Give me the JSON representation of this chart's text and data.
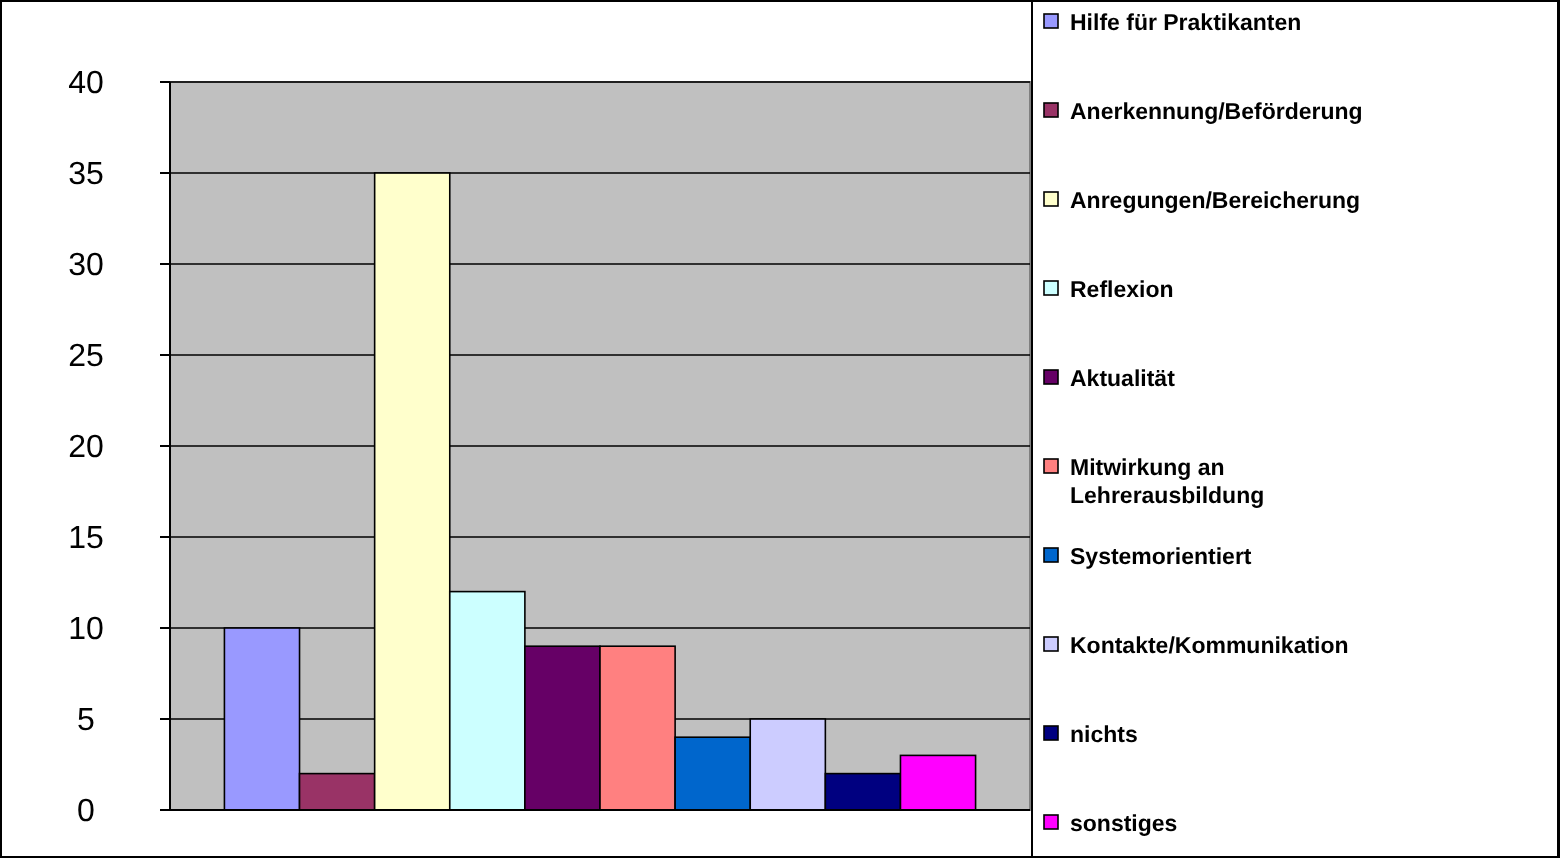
{
  "chart_data": {
    "type": "bar",
    "categories": [
      null
    ],
    "series": [
      {
        "name": "Hilfe für Praktikanten",
        "color": "#9999ff",
        "values": [
          10
        ]
      },
      {
        "name": "Anerkennung/Beförderung",
        "color": "#993366",
        "values": [
          2
        ]
      },
      {
        "name": "Anregungen/Bereicherung",
        "color": "#ffffcc",
        "values": [
          35
        ]
      },
      {
        "name": "Reflexion",
        "color": "#ccffff",
        "values": [
          12
        ]
      },
      {
        "name": "Aktualität",
        "color": "#660066",
        "values": [
          9
        ]
      },
      {
        "name": "Mitwirkung an Lehrerausbildung",
        "color": "#ff8080",
        "values": [
          9
        ]
      },
      {
        "name": "Systemorientiert",
        "color": "#0066cc",
        "values": [
          4
        ]
      },
      {
        "name": "Kontakte/Kommunikation",
        "color": "#ccccff",
        "values": [
          5
        ]
      },
      {
        "name": "nichts",
        "color": "#000080",
        "values": [
          2
        ]
      },
      {
        "name": "sonstiges",
        "color": "#ff00ff",
        "values": [
          3
        ]
      }
    ],
    "ylim": [
      0,
      40
    ],
    "yticks": [
      0,
      5,
      10,
      15,
      20,
      25,
      30,
      35,
      40
    ],
    "grid": "y",
    "legend": "right"
  }
}
